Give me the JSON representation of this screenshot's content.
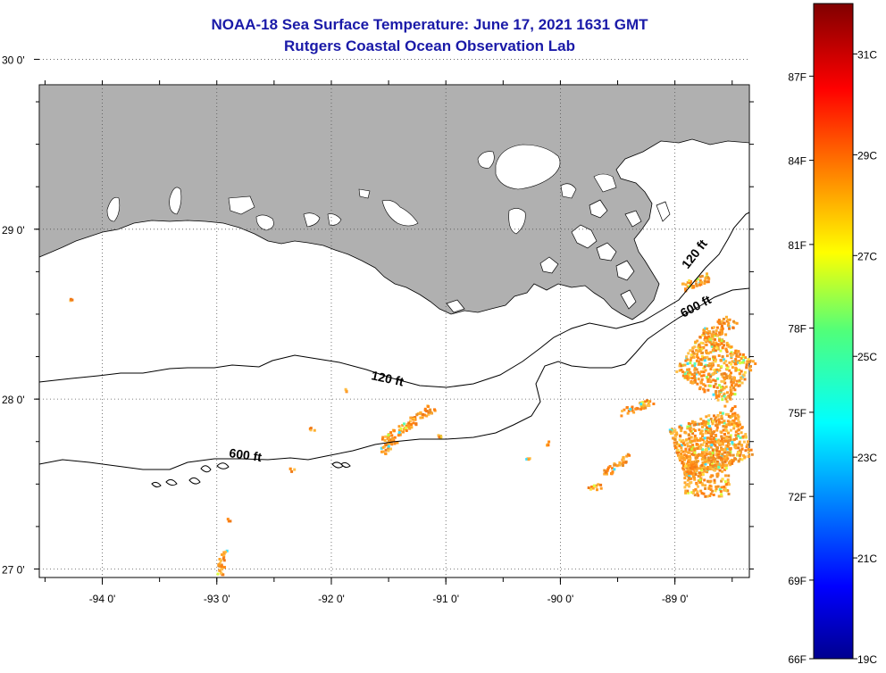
{
  "title_line1": "NOAA-18 Sea Surface Temperature:  June 17, 2021 1631 GMT",
  "title_line2": "Rutgers Coastal Ocean Observation Lab",
  "map": {
    "lon_range": [
      -94.55,
      -88.35
    ],
    "lat_range": [
      26.95,
      29.85
    ],
    "lon_ticks": [
      {
        "value": -94,
        "label": "-94 0'"
      },
      {
        "value": -93,
        "label": "-93 0'"
      },
      {
        "value": -92,
        "label": "-92 0'"
      },
      {
        "value": -91,
        "label": "-91 0'"
      },
      {
        "value": -90,
        "label": "-90 0'"
      },
      {
        "value": -89,
        "label": "-89 0'"
      }
    ],
    "lat_ticks": [
      {
        "value": 30,
        "label": "30 0'"
      },
      {
        "value": 29,
        "label": "29 0'"
      },
      {
        "value": 28,
        "label": "28 0'"
      },
      {
        "value": 27,
        "label": "27 0'"
      }
    ],
    "contour_labels": {
      "c120_west": "120 ft",
      "c600_west": "600 ft",
      "c120_east": "120 ft",
      "c600_east": "600 ft"
    },
    "land_color": "#b0b0b0"
  },
  "colorbar": {
    "range_c": [
      19,
      32
    ],
    "fahrenheit_labels": [
      {
        "label": "87F",
        "c": 30.56
      },
      {
        "label": "84F",
        "c": 28.89
      },
      {
        "label": "81F",
        "c": 27.22
      },
      {
        "label": "78F",
        "c": 25.56
      },
      {
        "label": "75F",
        "c": 23.89
      },
      {
        "label": "72F",
        "c": 22.22
      },
      {
        "label": "69F",
        "c": 20.56
      },
      {
        "label": "66F",
        "c": 18.89
      }
    ],
    "celsius_labels": [
      {
        "label": "31C",
        "c": 31
      },
      {
        "label": "29C",
        "c": 29
      },
      {
        "label": "27C",
        "c": 27
      },
      {
        "label": "25C",
        "c": 25
      },
      {
        "label": "23C",
        "c": 23
      },
      {
        "label": "21C",
        "c": 21
      },
      {
        "label": "19C",
        "c": 19
      }
    ]
  }
}
